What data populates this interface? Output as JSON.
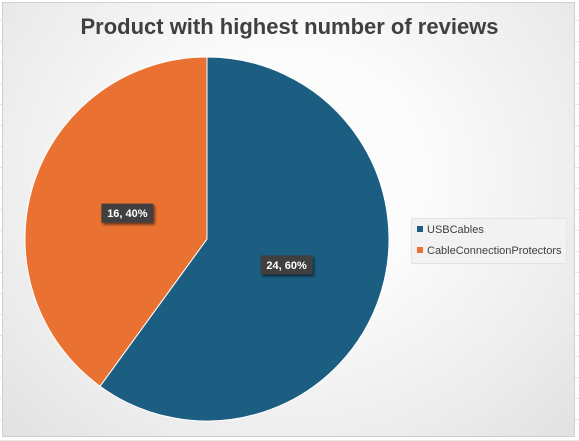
{
  "chart_data": {
    "type": "pie",
    "title": "Product with highest number of reviews",
    "slices": [
      {
        "name": "USBCables",
        "value": 24,
        "percent": 60,
        "color": "#1b5e82",
        "label": "24, 60%"
      },
      {
        "name": "CableConnectionProtectors",
        "value": 16,
        "percent": 40,
        "color": "#e97131",
        "label": "16, 40%"
      }
    ],
    "legend_position": "right"
  }
}
